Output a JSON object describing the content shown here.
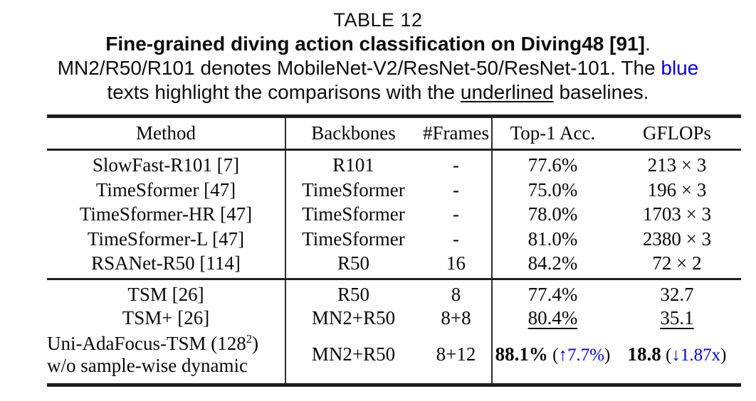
{
  "colors": {
    "blue": "#0000ee",
    "text": "#0a0a0a",
    "rule": "#1d1d1d"
  },
  "caption": {
    "label": "TABLE 12",
    "title_bold": "Fine-grained diving action classification on Diving48 [91]",
    "title_period": ".",
    "line3_before_blue": "MN2/R50/R101 denotes MobileNet-V2/ResNet-50/ResNet-101. The ",
    "line3_blue": "blue",
    "line4_before_underline": "texts highlight the comparisons with the ",
    "line4_underlined": "underlined",
    "line4_after_underline": " baselines."
  },
  "table": {
    "headers": [
      "Method",
      "Backbones",
      "#Frames",
      "Top-1 Acc.",
      "GFLOPs"
    ],
    "group1": [
      {
        "method": "SlowFast-R101 [7]",
        "backbone": "R101",
        "frames": "-",
        "acc": "77.6%",
        "gflops": "213 × 3"
      },
      {
        "method": "TimeSformer [47]",
        "backbone": "TimeSformer",
        "frames": "-",
        "acc": "75.0%",
        "gflops": "196 × 3"
      },
      {
        "method": "TimeSformer-HR [47]",
        "backbone": "TimeSformer",
        "frames": "-",
        "acc": "78.0%",
        "gflops": "1703 × 3"
      },
      {
        "method": "TimeSformer-L [47]",
        "backbone": "TimeSformer",
        "frames": "-",
        "acc": "81.0%",
        "gflops": "2380 × 3"
      },
      {
        "method": "RSANet-R50 [114]",
        "backbone": "R50",
        "frames": "16",
        "acc": "84.2%",
        "gflops": "72 × 2"
      }
    ],
    "group2": [
      {
        "method": "TSM [26]",
        "backbone": "R50",
        "frames": "8",
        "acc": "77.4%",
        "gflops": "32.7"
      },
      {
        "method": "TSM+ [26]",
        "backbone": "MN2+R50",
        "frames": "8+8",
        "acc": "80.4%",
        "gflops": "35.1"
      }
    ],
    "highlight_row": {
      "method_line1_pre": "Uni-AdaFocus-TSM (128",
      "method_sup": "2",
      "method_line1_post": ")",
      "method_line2": "w/o sample-wise dynamic",
      "backbone": "MN2+R50",
      "frames": "8+12",
      "acc_value": "88.1%",
      "acc_open": " (",
      "acc_delta": "↑7.7%",
      "acc_close": ")",
      "gflops_value": "18.8",
      "gflops_open": " (",
      "gflops_delta": "↓1.87x",
      "gflops_close": ")"
    }
  }
}
